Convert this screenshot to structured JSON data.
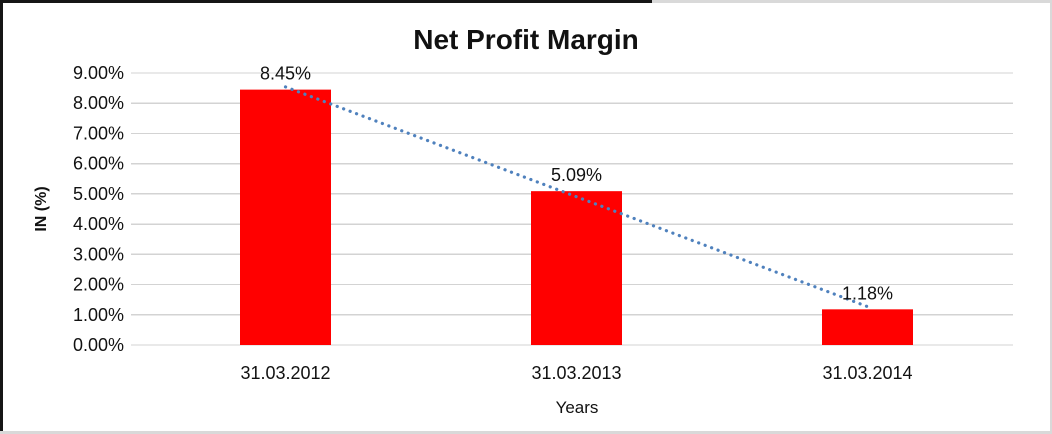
{
  "chart_data": {
    "type": "bar",
    "title": "Net Profit Margin",
    "xlabel": "Years",
    "ylabel": "IN (%)",
    "categories": [
      "31.03.2012",
      "31.03.2013",
      "31.03.2014"
    ],
    "series": [
      {
        "name": "Net Profit Margin",
        "values": [
          8.45,
          5.09,
          1.18
        ]
      }
    ],
    "data_labels": [
      "8.45%",
      "5.09%",
      "1.18%"
    ],
    "ylim": [
      0,
      9
    ],
    "ytick_step": 1,
    "ytick_labels": [
      "0.00%",
      "1.00%",
      "2.00%",
      "3.00%",
      "4.00%",
      "5.00%",
      "6.00%",
      "7.00%",
      "8.00%",
      "9.00%"
    ],
    "grid": true,
    "legend_position": "none",
    "bar_color": "#FF0000",
    "gridline_color": "#D3D3D3",
    "text_color": "#111111",
    "trendline": {
      "type": "linear",
      "style": "dotted",
      "color": "#4F81BD",
      "start_value": 8.54,
      "end_value": 1.27
    }
  }
}
